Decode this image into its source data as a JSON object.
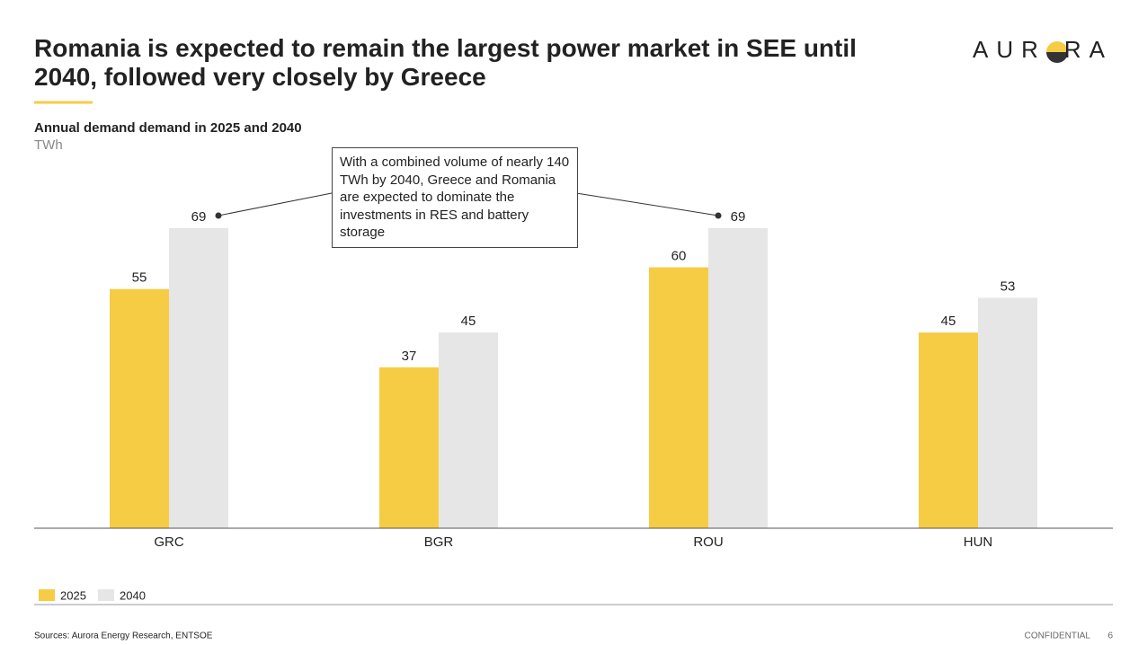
{
  "header": {
    "title": "Romania is expected to remain the largest power market in SEE until 2040, followed very closely by Greece",
    "logo_left": "AUR",
    "logo_right": "RA"
  },
  "chart_data": {
    "type": "bar",
    "title": "Annual demand demand in 2025 and 2040",
    "unit": "TWh",
    "categories": [
      "GRC",
      "BGR",
      "ROU",
      "HUN"
    ],
    "series": [
      {
        "name": "2025",
        "color": "#f6cc45",
        "values": [
          55,
          37,
          60,
          45
        ]
      },
      {
        "name": "2040",
        "color": "#e6e6e6",
        "values": [
          69,
          45,
          69,
          53
        ]
      }
    ],
    "ylim": [
      0,
      69
    ],
    "annotation": "With a combined volume of nearly 140 TWh by 2040, Greece and Romania are expected to dominate the investments in RES and battery storage"
  },
  "footer": {
    "source": "Sources: Aurora Energy Research, ENTSOE",
    "confidential": "CONFIDENTIAL",
    "page": "6"
  }
}
